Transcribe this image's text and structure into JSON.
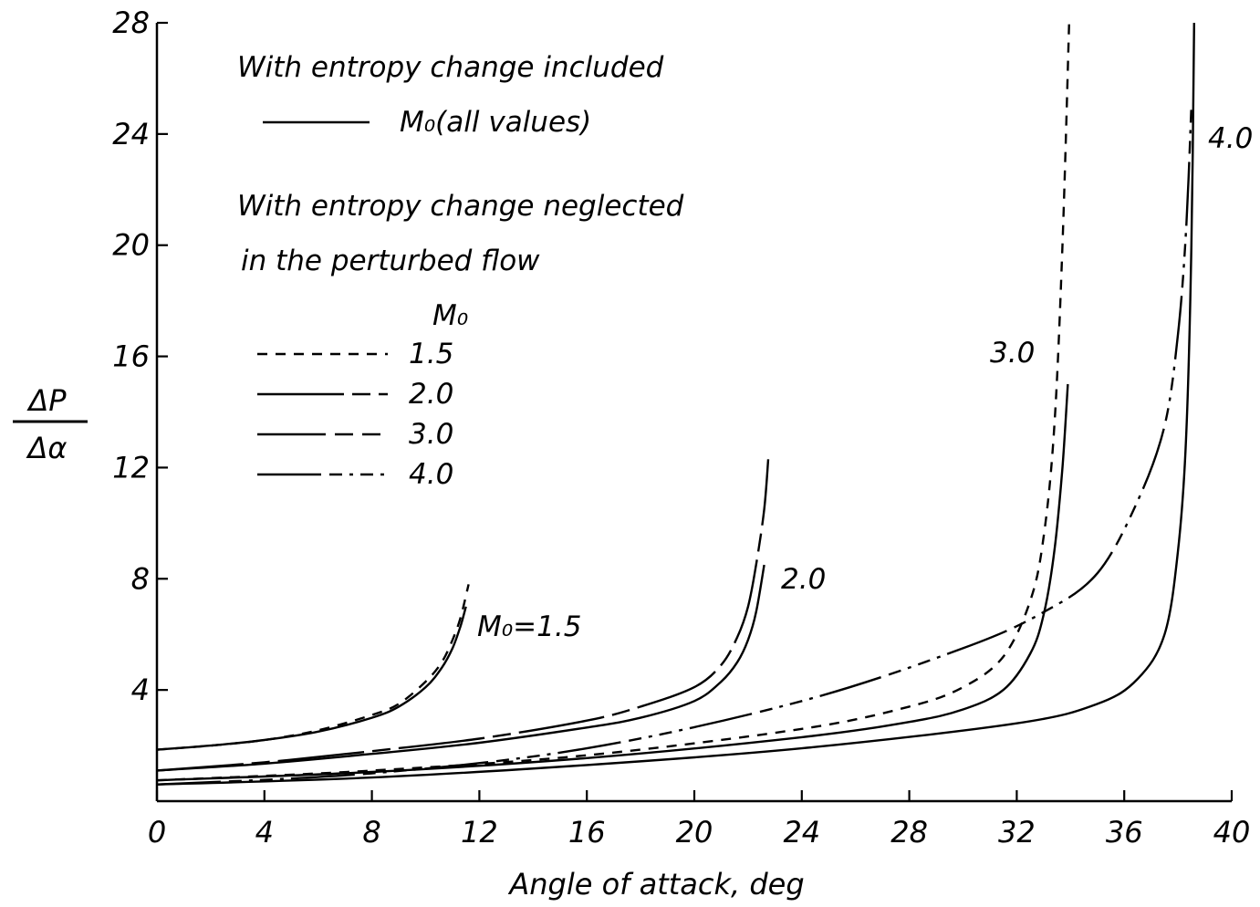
{
  "chart_data": {
    "type": "line",
    "xlabel": "Angle of attack, deg",
    "ylabel_numerator": "ΔP",
    "ylabel_denominator": "Δα",
    "xlim": [
      0,
      40
    ],
    "ylim": [
      0,
      28
    ],
    "x_ticks": [
      "0",
      "4",
      "8",
      "12",
      "16",
      "20",
      "24",
      "28",
      "32",
      "36",
      "40"
    ],
    "y_ticks": [
      "4",
      "8",
      "12",
      "16",
      "20",
      "24",
      "28"
    ],
    "grid": false,
    "legend": {
      "heading_included": "With entropy change included",
      "included_entry": "M₀(all values)",
      "heading_neglected_line1": "With entropy change neglected",
      "heading_neglected_line2": "in the perturbed flow",
      "mach_header": "M₀",
      "entries": [
        "1.5",
        "2.0",
        "3.0",
        "4.0"
      ]
    },
    "curve_labels": [
      "M₀=1.5",
      "2.0",
      "3.0",
      "4.0"
    ],
    "series": [
      {
        "mach": "1.5",
        "style": "solid",
        "x": [
          0,
          2,
          4,
          6,
          8,
          9,
          10,
          10.6,
          11,
          11.3,
          11.5
        ],
        "y": [
          1.85,
          2.0,
          2.2,
          2.5,
          3.0,
          3.4,
          4.1,
          4.8,
          5.5,
          6.3,
          7.0
        ]
      },
      {
        "mach": "1.5",
        "style": "dash",
        "x": [
          0,
          2,
          4,
          6,
          8,
          9,
          10,
          10.6,
          11,
          11.3,
          11.6
        ],
        "y": [
          1.85,
          2.0,
          2.2,
          2.55,
          3.1,
          3.5,
          4.3,
          5.0,
          5.8,
          6.6,
          7.8
        ]
      },
      {
        "mach": "2.0",
        "style": "solid",
        "x": [
          0,
          4,
          8,
          12,
          16,
          18,
          20,
          21,
          21.6,
          22,
          22.3,
          22.6
        ],
        "y": [
          1.1,
          1.35,
          1.7,
          2.1,
          2.65,
          3.0,
          3.6,
          4.3,
          5.0,
          5.8,
          6.8,
          8.5
        ]
      },
      {
        "mach": "2.0",
        "style": "long-dash-dash",
        "x": [
          0,
          4,
          8,
          12,
          16,
          18,
          20,
          21,
          21.6,
          22,
          22.3,
          22.6,
          22.75
        ],
        "y": [
          1.1,
          1.4,
          1.8,
          2.25,
          2.9,
          3.4,
          4.1,
          4.9,
          5.9,
          7.0,
          8.5,
          10.5,
          12.3
        ]
      },
      {
        "mach": "3.0",
        "style": "solid",
        "x": [
          0,
          8,
          16,
          24,
          28,
          30,
          31.5,
          32.5,
          33,
          33.4,
          33.7,
          33.9
        ],
        "y": [
          0.75,
          1.05,
          1.55,
          2.3,
          2.85,
          3.3,
          4.0,
          5.3,
          6.7,
          9.0,
          12.0,
          15.0
        ]
      },
      {
        "mach": "3.0",
        "style": "dash",
        "x": [
          0,
          8,
          16,
          24,
          28,
          30,
          31.5,
          32.5,
          33,
          33.4,
          33.7,
          33.95
        ],
        "y": [
          0.75,
          1.1,
          1.65,
          2.6,
          3.4,
          4.1,
          5.2,
          7.2,
          9.5,
          13.5,
          20.0,
          28.0
        ]
      },
      {
        "mach": "4.0",
        "style": "solid",
        "x": [
          0,
          8,
          16,
          24,
          32,
          35,
          36.5,
          37.5,
          38,
          38.3,
          38.5,
          38.6
        ],
        "y": [
          0.6,
          0.85,
          1.3,
          1.9,
          2.8,
          3.5,
          4.4,
          6.0,
          9.0,
          13.0,
          20.0,
          28.0
        ]
      },
      {
        "mach": "4.0",
        "style": "dash-dot",
        "x": [
          0,
          8,
          16,
          24,
          30,
          33,
          35,
          36.5,
          37.5,
          38,
          38.3,
          38.5
        ],
        "y": [
          0.6,
          1.0,
          1.9,
          3.6,
          5.5,
          6.8,
          8.2,
          10.8,
          13.5,
          16.8,
          20.5,
          25.0
        ]
      }
    ]
  }
}
